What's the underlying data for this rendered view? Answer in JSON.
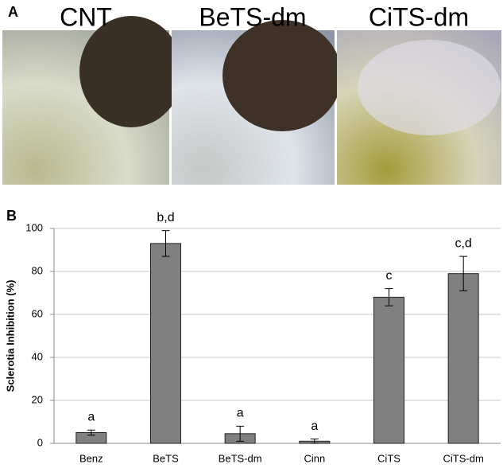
{
  "panel_a": {
    "label": "A",
    "photos": [
      "CNT",
      "BeTS-dm",
      "CiTS-dm"
    ]
  },
  "chart_data": {
    "type": "bar",
    "panel_label": "B",
    "y_label": "Sclerotia Inhibition (%)",
    "categories": [
      "Benz",
      "BeTS",
      "BeTS-dm",
      "Cinn",
      "CiTS",
      "CiTS-dm"
    ],
    "values": [
      5,
      93,
      4.5,
      1,
      68,
      79
    ],
    "errors": [
      1.2,
      6,
      3.5,
      1,
      4,
      8
    ],
    "significance": [
      "a",
      "b,d",
      "a",
      "a",
      "c",
      "c,d"
    ],
    "color": "#808080",
    "ylim": [
      0,
      100
    ],
    "yticks": [
      0,
      20,
      40,
      60,
      80,
      100
    ],
    "grid": true
  }
}
